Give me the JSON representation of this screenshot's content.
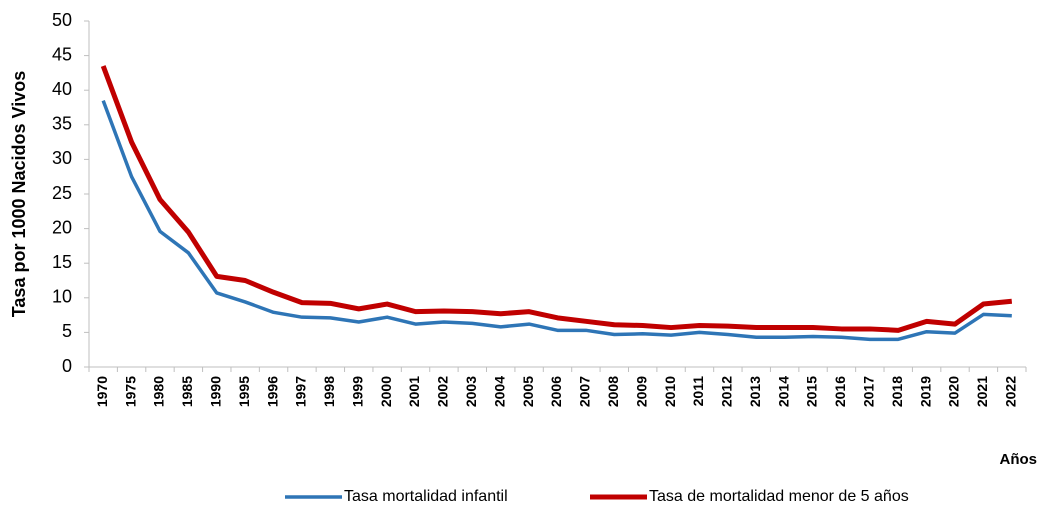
{
  "chart_data": {
    "type": "line",
    "y_label": "Tasa por 1000 Nacidos Vivos",
    "x_label": "Años",
    "categories": [
      "1970",
      "1975",
      "1980",
      "1985",
      "1990",
      "1995",
      "1996",
      "1997",
      "1998",
      "1999",
      "2000",
      "2001",
      "2002",
      "2003",
      "2004",
      "2005",
      "2006",
      "2007",
      "2008",
      "2009",
      "2010",
      "2011",
      "2012",
      "2013",
      "2014",
      "2015",
      "2016",
      "2017",
      "2018",
      "2019",
      "2020",
      "2021",
      "2022"
    ],
    "series": [
      {
        "name": "Tasa mortalidad infantil",
        "color": "#2e75b6",
        "values": [
          38.5,
          27.5,
          19.6,
          16.5,
          10.7,
          9.4,
          7.9,
          7.2,
          7.1,
          6.5,
          7.2,
          6.2,
          6.5,
          6.3,
          5.8,
          6.2,
          5.3,
          5.3,
          4.7,
          4.8,
          4.6,
          5.0,
          4.7,
          4.3,
          4.3,
          4.4,
          4.3,
          4.0,
          4.0,
          5.1,
          4.9,
          7.6,
          7.4
        ]
      },
      {
        "name": "Tasa de mortalidad menor de 5 años",
        "color": "#c00000",
        "values": [
          43.5,
          32.5,
          24.2,
          19.5,
          13.1,
          12.5,
          10.8,
          9.3,
          9.2,
          8.4,
          9.1,
          8.0,
          8.1,
          8.0,
          7.7,
          8.0,
          7.1,
          6.6,
          6.1,
          6.0,
          5.7,
          6.0,
          5.9,
          5.7,
          5.7,
          5.7,
          5.5,
          5.5,
          5.3,
          6.6,
          6.2,
          9.1,
          9.5
        ]
      }
    ],
    "ylim": [
      0,
      50
    ],
    "yticks": [
      0,
      5,
      10,
      15,
      20,
      25,
      30,
      35,
      40,
      45,
      50
    ],
    "grid": false,
    "legend": "bottom"
  }
}
